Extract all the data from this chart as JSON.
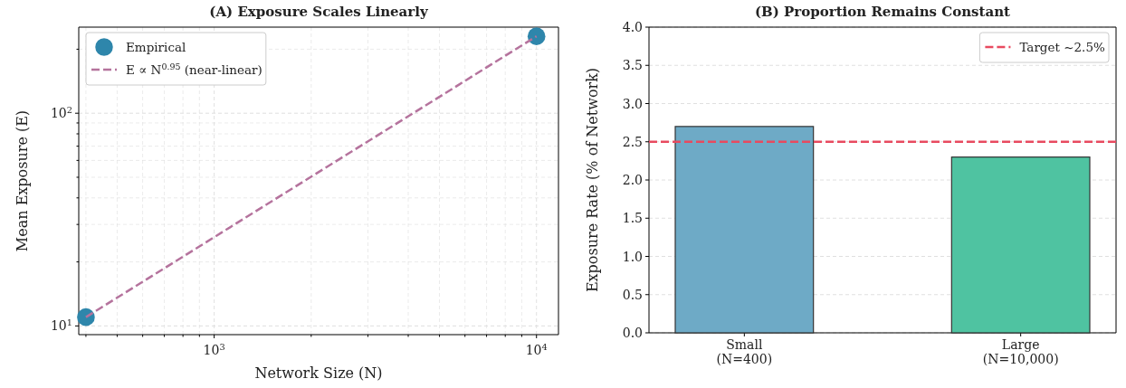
{
  "chart_data": [
    {
      "type": "scatter",
      "title": "(A) Exposure Scales Linearly",
      "xlabel": "Network Size (N)",
      "ylabel": "Mean Exposure (E)",
      "log": "xy",
      "grid": true,
      "legend": "top left",
      "marker": "circle",
      "xlim": [
        380,
        11700
      ],
      "ylim": [
        9.1,
        254
      ],
      "xticks": [
        {
          "value": 400,
          "label": null
        },
        {
          "value": 500,
          "label": null
        },
        {
          "value": 600,
          "label": null
        },
        {
          "value": 700,
          "label": null
        },
        {
          "value": 800,
          "label": null
        },
        {
          "value": 900,
          "label": null
        },
        {
          "value": 1000,
          "label": "10$^{3}$"
        },
        {
          "value": 2000,
          "label": null
        },
        {
          "value": 3000,
          "label": null
        },
        {
          "value": 4000,
          "label": null
        },
        {
          "value": 5000,
          "label": null
        },
        {
          "value": 6000,
          "label": null
        },
        {
          "value": 7000,
          "label": null
        },
        {
          "value": 8000,
          "label": null
        },
        {
          "value": 9000,
          "label": null
        },
        {
          "value": 10000,
          "label": "10$^{4}$"
        }
      ],
      "yticks": [
        {
          "value": 10,
          "label": "10$^{1}$"
        },
        {
          "value": 20,
          "label": null
        },
        {
          "value": 30,
          "label": null
        },
        {
          "value": 40,
          "label": null
        },
        {
          "value": 50,
          "label": null
        },
        {
          "value": 60,
          "label": null
        },
        {
          "value": 70,
          "label": null
        },
        {
          "value": 80,
          "label": null
        },
        {
          "value": 90,
          "label": null
        },
        {
          "value": 100,
          "label": "10$^{2}$"
        },
        {
          "value": 200,
          "label": null
        }
      ],
      "x": [
        400,
        10000
      ],
      "series": [
        {
          "name": "Empirical",
          "type": "scatter",
          "color": "#2e86ab",
          "values": [
            11,
            230
          ]
        },
        {
          "name": "E ∝ N$^{0.95}$ (near-linear)",
          "type": "line",
          "color": "#b5739d",
          "line_style": "dashed",
          "marker": "none",
          "values": [
            11,
            230
          ]
        }
      ]
    },
    {
      "type": "bar",
      "title": "(B) Proportion Remains Constant",
      "ylabel": "Exposure Rate (% of Network)",
      "grid": "y",
      "legend": "top right",
      "categories": [
        "Small\n(N=400)",
        "Large\n(N=10,000)"
      ],
      "values": [
        2.7,
        2.3
      ],
      "colors": [
        "#6eaac6",
        "#4fc3a1"
      ],
      "ylim": [
        0,
        4
      ],
      "yticks": [
        {
          "value": 0,
          "label": "0.0"
        },
        0.5,
        {
          "value": 1,
          "label": "1.0"
        },
        1.5,
        {
          "value": 2,
          "label": "2.0"
        },
        2.5,
        {
          "value": 3,
          "label": "3.0"
        },
        3.5,
        {
          "value": 4,
          "label": "4.0"
        }
      ],
      "ref_lines": [
        {
          "axis": "y",
          "value": 2.5,
          "label": "Target ~2.5%",
          "color": "#e84a5f",
          "line_style": "dashed"
        }
      ]
    }
  ]
}
